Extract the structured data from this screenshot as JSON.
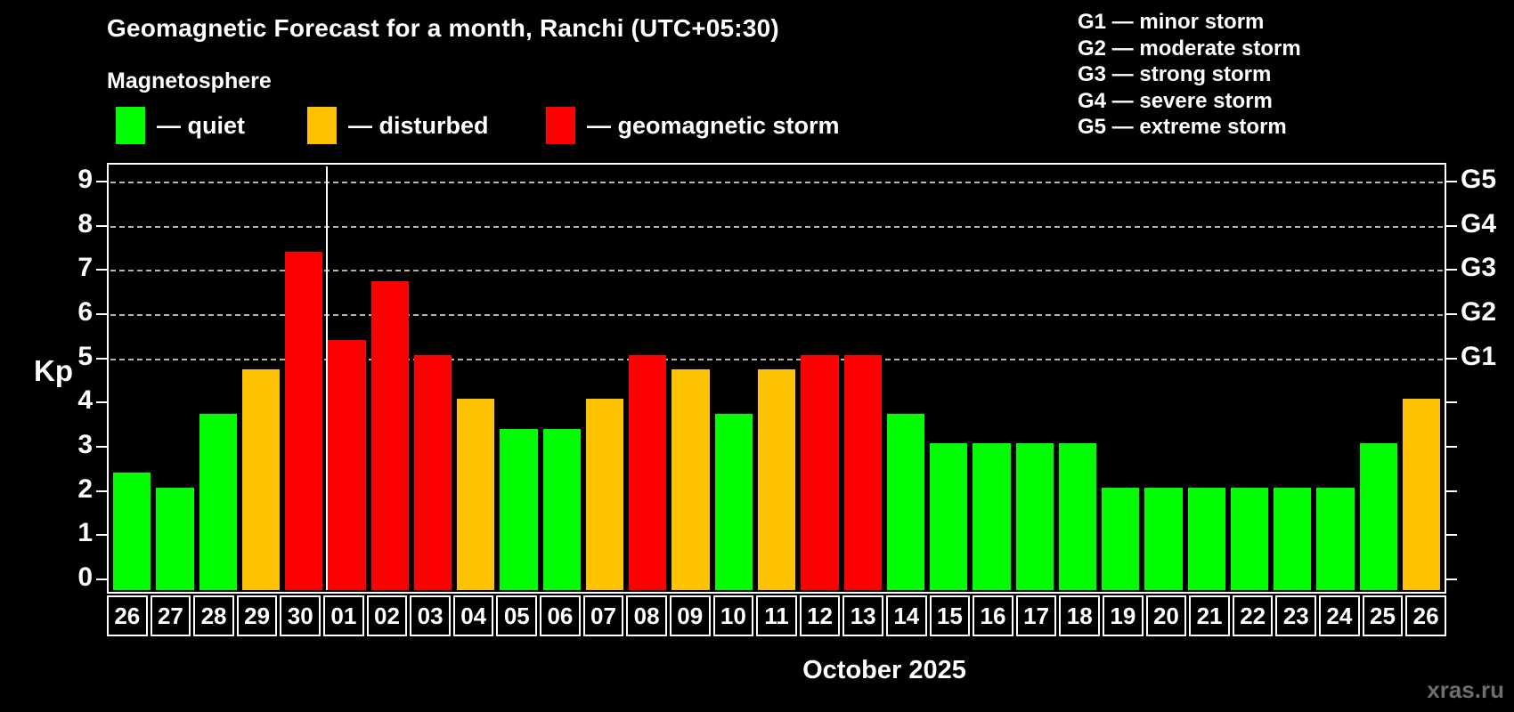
{
  "header": {
    "title": "Geomagnetic Forecast for a month, Ranchi (UTC+05:30)",
    "subtitle": "Magnetosphere"
  },
  "colors": {
    "quiet": "#00ff00",
    "disturbed": "#ffc200",
    "storm": "#ff0000",
    "grid": "#b4b4b4",
    "axis": "#ffffff",
    "watermark": "#6e6e6e"
  },
  "legend": {
    "items": [
      {
        "key": "quiet",
        "label": "— quiet"
      },
      {
        "key": "disturbed",
        "label": "— disturbed"
      },
      {
        "key": "storm",
        "label": "— geomagnetic storm"
      }
    ]
  },
  "g_legend": {
    "lines": [
      "G1 — minor storm",
      "G2 — moderate storm",
      "G3 — strong storm",
      "G4 — severe storm",
      "G5 — extreme storm"
    ]
  },
  "watermark": "xras.ru",
  "chart_data": {
    "type": "bar",
    "title": "Geomagnetic Forecast for a month, Ranchi (UTC+05:30)",
    "ylabel": "Kp",
    "xlabel": "October 2025",
    "ylim": [
      0,
      9
    ],
    "y_ticks": [
      0,
      1,
      2,
      3,
      4,
      5,
      6,
      7,
      8,
      9
    ],
    "gridlines_at": [
      5,
      6,
      7,
      8,
      9
    ],
    "grid": "dashed, levels 5-9 only",
    "legend_position": "top-left",
    "right_axis_labels": [
      {
        "label": "G1",
        "value": 5
      },
      {
        "label": "G2",
        "value": 6
      },
      {
        "label": "G3",
        "value": 7
      },
      {
        "label": "G4",
        "value": 8
      },
      {
        "label": "G5",
        "value": 9
      }
    ],
    "month_divider_after_index": 4,
    "bars": [
      {
        "date": "26",
        "value": 2.33,
        "level": "quiet"
      },
      {
        "date": "27",
        "value": 2.0,
        "level": "quiet"
      },
      {
        "date": "28",
        "value": 3.67,
        "level": "quiet"
      },
      {
        "date": "29",
        "value": 4.67,
        "level": "disturbed"
      },
      {
        "date": "30",
        "value": 7.33,
        "level": "storm"
      },
      {
        "date": "01",
        "value": 5.33,
        "level": "storm"
      },
      {
        "date": "02",
        "value": 6.67,
        "level": "storm"
      },
      {
        "date": "03",
        "value": 5.0,
        "level": "storm"
      },
      {
        "date": "04",
        "value": 4.0,
        "level": "disturbed"
      },
      {
        "date": "05",
        "value": 3.33,
        "level": "quiet"
      },
      {
        "date": "06",
        "value": 3.33,
        "level": "quiet"
      },
      {
        "date": "07",
        "value": 4.0,
        "level": "disturbed"
      },
      {
        "date": "08",
        "value": 5.0,
        "level": "storm"
      },
      {
        "date": "09",
        "value": 4.67,
        "level": "disturbed"
      },
      {
        "date": "10",
        "value": 3.67,
        "level": "quiet"
      },
      {
        "date": "11",
        "value": 4.67,
        "level": "disturbed"
      },
      {
        "date": "12",
        "value": 5.0,
        "level": "storm"
      },
      {
        "date": "13",
        "value": 5.0,
        "level": "storm"
      },
      {
        "date": "14",
        "value": 3.67,
        "level": "quiet"
      },
      {
        "date": "15",
        "value": 3.0,
        "level": "quiet"
      },
      {
        "date": "16",
        "value": 3.0,
        "level": "quiet"
      },
      {
        "date": "17",
        "value": 3.0,
        "level": "quiet"
      },
      {
        "date": "18",
        "value": 3.0,
        "level": "quiet"
      },
      {
        "date": "19",
        "value": 2.0,
        "level": "quiet"
      },
      {
        "date": "20",
        "value": 2.0,
        "level": "quiet"
      },
      {
        "date": "21",
        "value": 2.0,
        "level": "quiet"
      },
      {
        "date": "22",
        "value": 2.0,
        "level": "quiet"
      },
      {
        "date": "23",
        "value": 2.0,
        "level": "quiet"
      },
      {
        "date": "24",
        "value": 2.0,
        "level": "quiet"
      },
      {
        "date": "25",
        "value": 3.0,
        "level": "quiet"
      },
      {
        "date": "26",
        "value": 4.0,
        "level": "disturbed"
      }
    ]
  }
}
